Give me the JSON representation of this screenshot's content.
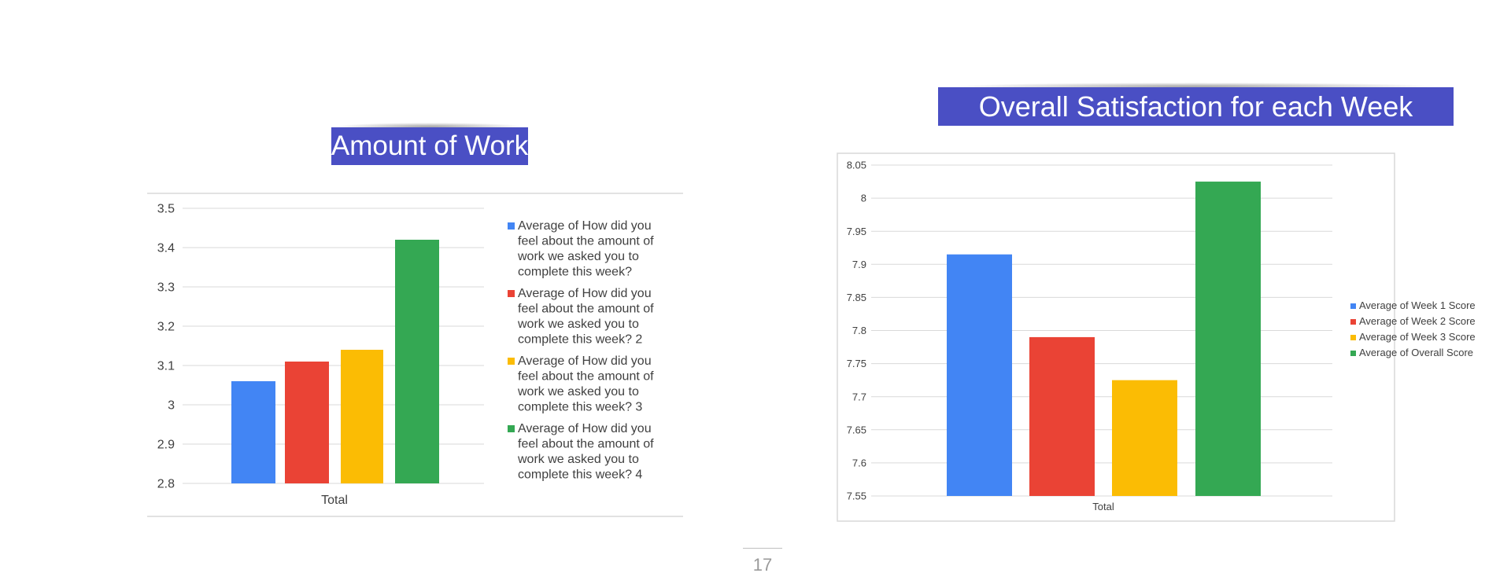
{
  "page": {
    "number": "17"
  },
  "chart_data": [
    {
      "type": "bar",
      "title": "Amount of Work",
      "categories": [
        "Total"
      ],
      "xlabel": "Total",
      "ylabel": "",
      "ylim": [
        2.8,
        3.5
      ],
      "yticks": [
        "3.5",
        "3.4",
        "3.3",
        "3.2",
        "3.1",
        "3",
        "2.9",
        "2.8"
      ],
      "yticks_values": [
        3.5,
        3.4,
        3.3,
        3.2,
        3.1,
        3.0,
        2.9,
        2.8
      ],
      "grid": true,
      "legend_position": "right",
      "series": [
        {
          "name": "Average of How did you feel about the amount of work we asked you to complete this week?",
          "legend_lines": [
            "Average of How did you",
            "feel about the amount of",
            "work we asked you to",
            "complete this week?"
          ],
          "values": [
            3.06
          ],
          "color": "#4285f4"
        },
        {
          "name": "Average of How did you feel about the amount of work we asked you to complete this week? 2",
          "legend_lines": [
            "Average of How did you",
            "feel about the amount of",
            "work we asked you to",
            "complete this week? 2"
          ],
          "values": [
            3.11
          ],
          "color": "#ea4335"
        },
        {
          "name": "Average of How did you feel about the amount of work we asked you to complete this week? 3",
          "legend_lines": [
            "Average of How did you",
            "feel about the amount of",
            "work we asked you to",
            "complete this week? 3"
          ],
          "values": [
            3.14
          ],
          "color": "#fbbc04"
        },
        {
          "name": "Average of How did you feel about the amount of work we asked you to complete this week? 4",
          "legend_lines": [
            "Average of How did you",
            "feel about the amount of",
            "work we asked you to",
            "complete this week? 4"
          ],
          "values": [
            3.42
          ],
          "color": "#34a853"
        }
      ]
    },
    {
      "type": "bar",
      "title": "Overall Satisfaction for each Week",
      "categories": [
        "Total"
      ],
      "xlabel": "Total",
      "ylabel": "",
      "ylim": [
        7.55,
        8.05
      ],
      "yticks": [
        "8.05",
        "8",
        "7.95",
        "7.9",
        "7.85",
        "7.8",
        "7.75",
        "7.7",
        "7.65",
        "7.6",
        "7.55"
      ],
      "yticks_values": [
        8.05,
        8.0,
        7.95,
        7.9,
        7.85,
        7.8,
        7.75,
        7.7,
        7.65,
        7.6,
        7.55
      ],
      "grid": true,
      "legend_position": "right",
      "series": [
        {
          "name": "Average of Week 1 Score",
          "legend_lines": [
            "Average of Week 1 Score"
          ],
          "values": [
            7.915
          ],
          "color": "#4285f4"
        },
        {
          "name": "Average of Week 2 Score",
          "legend_lines": [
            "Average of Week 2 Score"
          ],
          "values": [
            7.79
          ],
          "color": "#ea4335"
        },
        {
          "name": "Average of Week 3 Score",
          "legend_lines": [
            "Average of Week 3 Score"
          ],
          "values": [
            7.725
          ],
          "color": "#fbbc04"
        },
        {
          "name": "Average of Overall Score",
          "legend_lines": [
            "Average of Overall Score"
          ],
          "values": [
            8.025
          ],
          "color": "#34a853"
        }
      ]
    }
  ]
}
